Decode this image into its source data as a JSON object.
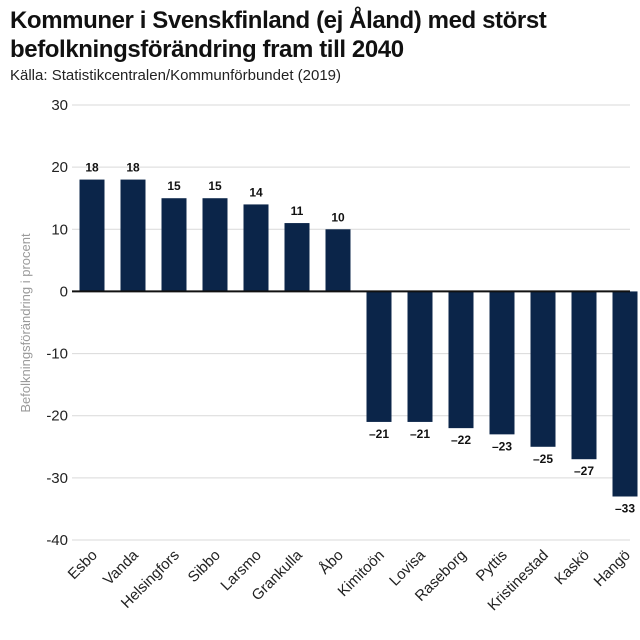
{
  "chart_data": {
    "type": "bar",
    "title_line1": "Kommuner i Svenskfinland (ej Åland) med störst",
    "title_line2": "befolkningsförändring fram till 2040",
    "source": "Källa: Statistikcentralen/Kommunförbundet (2019)",
    "ylabel": "Befolkningsförändring i procent",
    "xlabel": "",
    "ylim": [
      -40,
      30
    ],
    "yticks": [
      30,
      20,
      10,
      0,
      -10,
      -20,
      -30,
      -40
    ],
    "grid": true,
    "categories": [
      "Esbo",
      "Vanda",
      "Helsingfors",
      "Sibbo",
      "Larsmo",
      "Grankulla",
      "Åbo",
      "Kimitoön",
      "Lovisa",
      "Raseborg",
      "Pyttis",
      "Kristinestad",
      "Kaskö",
      "Hangö"
    ],
    "values": [
      18,
      18,
      15,
      15,
      14,
      11,
      10,
      -21,
      -21,
      -22,
      -23,
      -25,
      -27,
      -33
    ],
    "data_labels": [
      "18",
      "18",
      "15",
      "15",
      "14",
      "11",
      "10",
      "–21",
      "–21",
      "–22",
      "–23",
      "–25",
      "–27",
      "–33"
    ],
    "bar_color": "#0b2549"
  }
}
